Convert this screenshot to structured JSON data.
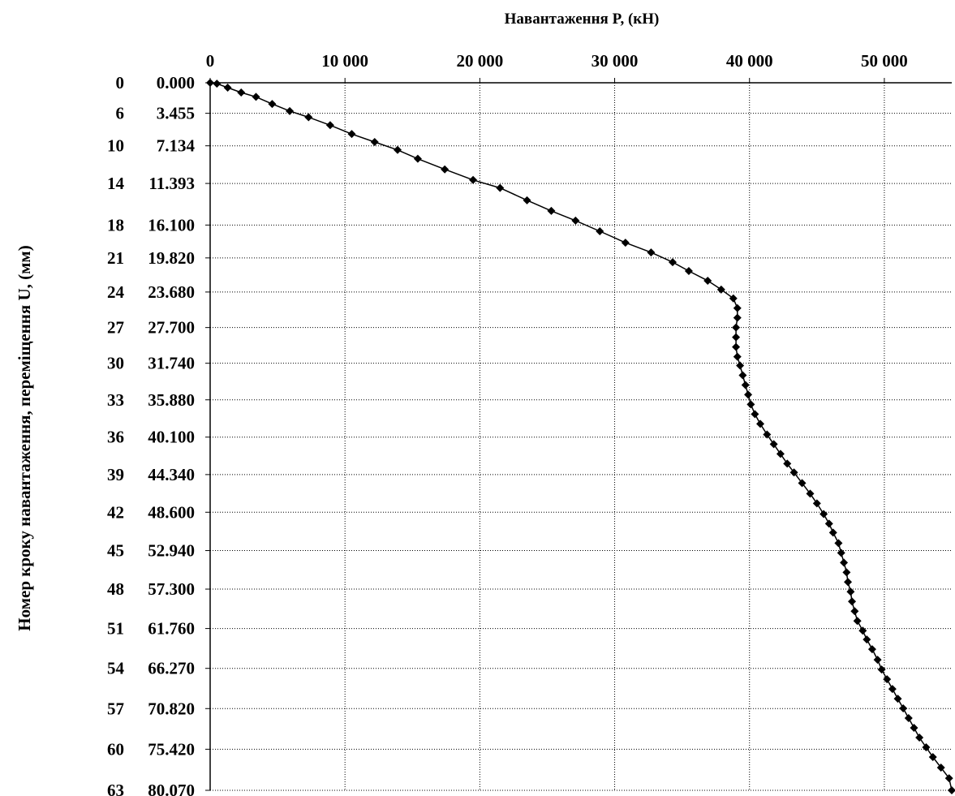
{
  "chart_data": {
    "type": "line",
    "title": "Навантаження P, (кН)",
    "xlabel": "Навантаження P, (кН)",
    "ylabel": "Номер кроку навантаження, переміщення U, (мм)",
    "x_axis_position": "top",
    "y_axis_inverted": true,
    "xlim": [
      0,
      55000
    ],
    "ylim": [
      0,
      80.07
    ],
    "grid": true,
    "grid_style": "dotted",
    "x_ticks": [
      {
        "value": 0,
        "label": "0"
      },
      {
        "value": 10000,
        "label": "10 000"
      },
      {
        "value": 20000,
        "label": "20 000"
      },
      {
        "value": 30000,
        "label": "30 000"
      },
      {
        "value": 40000,
        "label": "40 000"
      },
      {
        "value": 50000,
        "label": "50 000"
      }
    ],
    "y_ticks": [
      {
        "value": 0.0,
        "step": "0",
        "disp": "0.000"
      },
      {
        "value": 3.455,
        "step": "6",
        "disp": "3.455"
      },
      {
        "value": 7.134,
        "step": "10",
        "disp": "7.134"
      },
      {
        "value": 11.393,
        "step": "14",
        "disp": "11.393"
      },
      {
        "value": 16.1,
        "step": "18",
        "disp": "16.100"
      },
      {
        "value": 19.82,
        "step": "21",
        "disp": "19.820"
      },
      {
        "value": 23.68,
        "step": "24",
        "disp": "23.680"
      },
      {
        "value": 27.7,
        "step": "27",
        "disp": "27.700"
      },
      {
        "value": 31.74,
        "step": "30",
        "disp": "31.740"
      },
      {
        "value": 35.88,
        "step": "33",
        "disp": "35.880"
      },
      {
        "value": 40.1,
        "step": "36",
        "disp": "40.100"
      },
      {
        "value": 44.34,
        "step": "39",
        "disp": "44.340"
      },
      {
        "value": 48.6,
        "step": "42",
        "disp": "48.600"
      },
      {
        "value": 52.94,
        "step": "45",
        "disp": "52.940"
      },
      {
        "value": 57.3,
        "step": "48",
        "disp": "57.300"
      },
      {
        "value": 61.76,
        "step": "51",
        "disp": "61.760"
      },
      {
        "value": 66.27,
        "step": "54",
        "disp": "66.270"
      },
      {
        "value": 70.82,
        "step": "57",
        "disp": "70.820"
      },
      {
        "value": 75.42,
        "step": "60",
        "disp": "75.420"
      },
      {
        "value": 80.07,
        "step": "63",
        "disp": "80.070"
      }
    ],
    "series": [
      {
        "marker": "diamond",
        "color": "#000000",
        "points": [
          [
            0,
            0.0
          ],
          [
            500,
            0.1
          ],
          [
            1300,
            0.55
          ],
          [
            2300,
            1.1
          ],
          [
            3400,
            1.6
          ],
          [
            4600,
            2.4
          ],
          [
            5900,
            3.2
          ],
          [
            7300,
            3.9
          ],
          [
            8900,
            4.8
          ],
          [
            10500,
            5.8
          ],
          [
            12200,
            6.7
          ],
          [
            13900,
            7.6
          ],
          [
            15400,
            8.6
          ],
          [
            17400,
            9.8
          ],
          [
            19500,
            11.0
          ],
          [
            21500,
            11.9
          ],
          [
            23500,
            13.3
          ],
          [
            25300,
            14.5
          ],
          [
            27100,
            15.6
          ],
          [
            28900,
            16.8
          ],
          [
            30800,
            18.1
          ],
          [
            32700,
            19.2
          ],
          [
            34300,
            20.3
          ],
          [
            35500,
            21.3
          ],
          [
            36900,
            22.4
          ],
          [
            37900,
            23.4
          ],
          [
            38800,
            24.4
          ],
          [
            39100,
            25.5
          ],
          [
            39100,
            26.6
          ],
          [
            39000,
            27.7
          ],
          [
            39000,
            28.8
          ],
          [
            39000,
            29.9
          ],
          [
            39100,
            31.0
          ],
          [
            39300,
            32.0
          ],
          [
            39500,
            33.1
          ],
          [
            39700,
            34.2
          ],
          [
            39900,
            35.3
          ],
          [
            40100,
            36.4
          ],
          [
            40400,
            37.5
          ],
          [
            40800,
            38.6
          ],
          [
            41300,
            39.8
          ],
          [
            41800,
            40.9
          ],
          [
            42300,
            42.0
          ],
          [
            42800,
            43.1
          ],
          [
            43300,
            44.1
          ],
          [
            43900,
            45.3
          ],
          [
            44500,
            46.5
          ],
          [
            45000,
            47.6
          ],
          [
            45500,
            48.8
          ],
          [
            45900,
            49.9
          ],
          [
            46200,
            50.9
          ],
          [
            46600,
            52.1
          ],
          [
            46800,
            53.2
          ],
          [
            47000,
            54.3
          ],
          [
            47200,
            55.4
          ],
          [
            47300,
            56.5
          ],
          [
            47500,
            57.6
          ],
          [
            47600,
            58.7
          ],
          [
            47800,
            59.8
          ],
          [
            48000,
            60.9
          ],
          [
            48400,
            62.0
          ],
          [
            48700,
            63.0
          ],
          [
            49100,
            64.1
          ],
          [
            49500,
            65.3
          ],
          [
            49800,
            66.4
          ],
          [
            50200,
            67.5
          ],
          [
            50600,
            68.6
          ],
          [
            51000,
            69.7
          ],
          [
            51400,
            70.8
          ],
          [
            51800,
            71.9
          ],
          [
            52200,
            73.0
          ],
          [
            52600,
            74.1
          ],
          [
            53100,
            75.2
          ],
          [
            53600,
            76.3
          ],
          [
            54200,
            77.5
          ],
          [
            54800,
            78.7
          ],
          [
            55000,
            80.07
          ]
        ]
      }
    ]
  }
}
